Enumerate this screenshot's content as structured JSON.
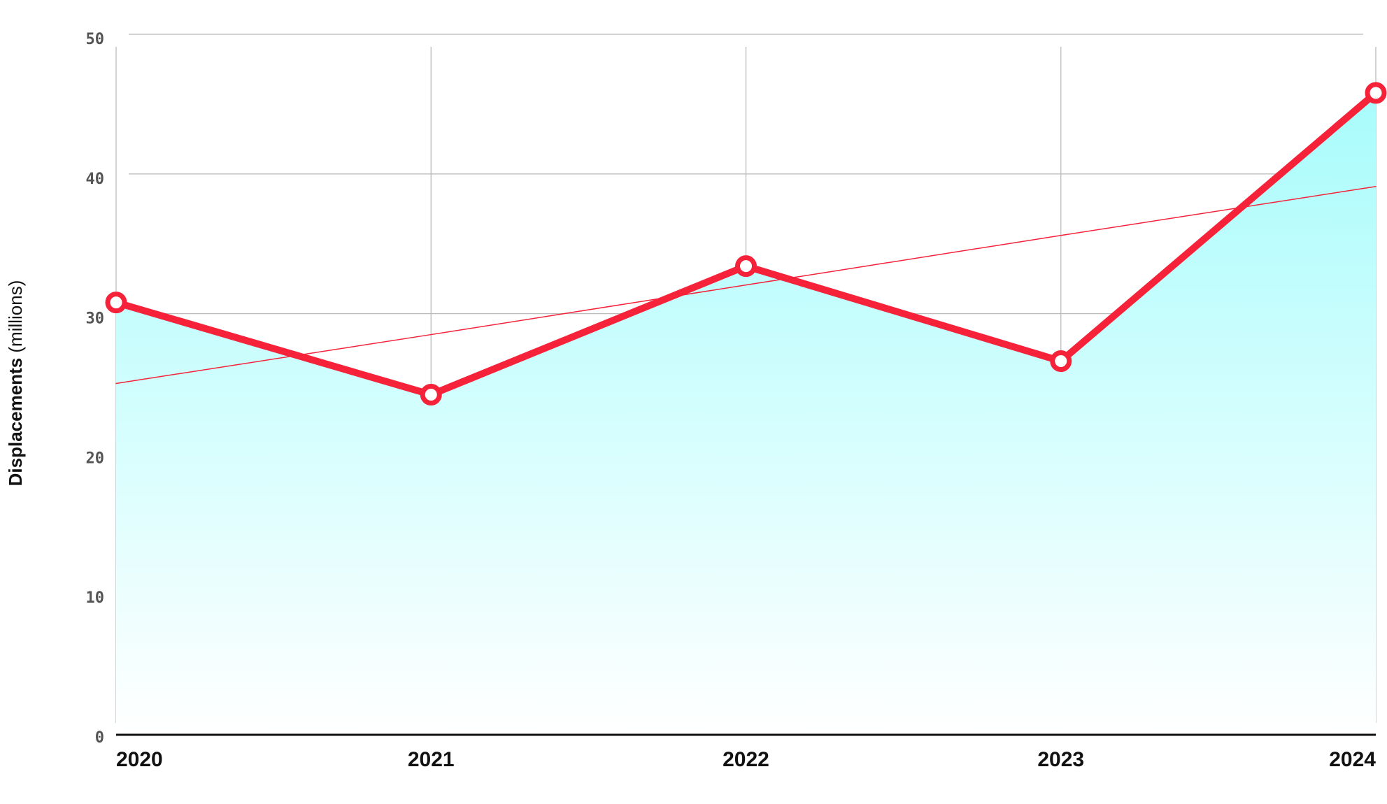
{
  "chart_data": {
    "type": "line",
    "ylabel": "Displacements",
    "ylabel_unit": "(millions)",
    "categories": [
      "2020",
      "2021",
      "2022",
      "2023",
      "2024"
    ],
    "series": [
      {
        "color": "#f5223a",
        "values": [
          30.8,
          24.2,
          33.4,
          26.6,
          45.8
        ],
        "area_color": "#a8fcfc",
        "markers": true,
        "line_width": 10
      },
      {
        "color": "#f5223a",
        "values": [
          25.0,
          28.5,
          32.05,
          35.6,
          39.1
        ],
        "markers": false,
        "line_width": 1.5
      }
    ],
    "ylim": [
      0,
      50
    ],
    "yticks": [
      0,
      10,
      20,
      30,
      40,
      50
    ],
    "grid": true
  }
}
